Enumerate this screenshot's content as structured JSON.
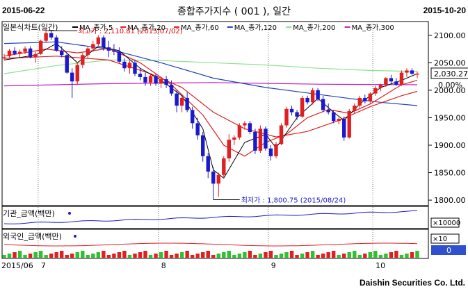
{
  "header": {
    "start_date": "2015-06-22",
    "title": "종합주가지수 ( 001 ), 일간",
    "end_date": "2015-10-20"
  },
  "footer": {
    "company": "Daishin Securities Co. Ltd."
  },
  "colors": {
    "up": "#e02020",
    "down": "#1a1acc",
    "ma5": "#000000",
    "ma20": "#e02020",
    "ma60": "#e02020",
    "ma120": "#2040c0",
    "ma200": "#90e090",
    "ma300": "#c020c0"
  },
  "chart_data": {
    "type": "candlestick",
    "panel_title": "일본식차트(일간)",
    "legend": [
      "MA_종가,5",
      "MA_종가,20",
      "MA_종가,60",
      "MA_종가,120",
      "MA_종가,200",
      "MA_종가,300"
    ],
    "y_ticks": [
      2100.0,
      2050.0,
      2000.0,
      1950.0,
      1900.0,
      1850.0,
      1800.0
    ],
    "ylim": [
      1790,
      2125
    ],
    "current_value": "2,030.27",
    "current_change": "0.00%",
    "high_label": "최고가 : 2,110.81 (2015/07/02)",
    "low_label": "최저가 : 1,800.75 (2015/08/24)",
    "x_labels": [
      "2015/06",
      "7",
      "8",
      "9",
      "10"
    ],
    "candles": [
      {
        "o": 2058,
        "h": 2066,
        "l": 2054,
        "c": 2060
      },
      {
        "o": 2062,
        "h": 2075,
        "l": 2058,
        "c": 2072
      },
      {
        "o": 2072,
        "h": 2078,
        "l": 2064,
        "c": 2066
      },
      {
        "o": 2066,
        "h": 2074,
        "l": 2060,
        "c": 2070
      },
      {
        "o": 2070,
        "h": 2080,
        "l": 2066,
        "c": 2076
      },
      {
        "o": 2076,
        "h": 2080,
        "l": 2058,
        "c": 2060
      },
      {
        "o": 2060,
        "h": 2070,
        "l": 2050,
        "c": 2066
      },
      {
        "o": 2066,
        "h": 2092,
        "l": 2064,
        "c": 2090
      },
      {
        "o": 2090,
        "h": 2110.81,
        "l": 2086,
        "c": 2104
      },
      {
        "o": 2104,
        "h": 2108,
        "l": 2092,
        "c": 2096
      },
      {
        "o": 2096,
        "h": 2100,
        "l": 2070,
        "c": 2072
      },
      {
        "o": 2072,
        "h": 2080,
        "l": 2060,
        "c": 2064
      },
      {
        "o": 2064,
        "h": 2068,
        "l": 2030,
        "c": 2032
      },
      {
        "o": 2032,
        "h": 2040,
        "l": 1986,
        "c": 2016
      },
      {
        "o": 2016,
        "h": 2050,
        "l": 2010,
        "c": 2046
      },
      {
        "o": 2046,
        "h": 2068,
        "l": 2040,
        "c": 2064
      },
      {
        "o": 2064,
        "h": 2080,
        "l": 2058,
        "c": 2076
      },
      {
        "o": 2076,
        "h": 2090,
        "l": 2070,
        "c": 2084
      },
      {
        "o": 2084,
        "h": 2100,
        "l": 2080,
        "c": 2096
      },
      {
        "o": 2096,
        "h": 2100,
        "l": 2072,
        "c": 2078
      },
      {
        "o": 2078,
        "h": 2090,
        "l": 2060,
        "c": 2072
      },
      {
        "o": 2072,
        "h": 2084,
        "l": 2064,
        "c": 2070
      },
      {
        "o": 2070,
        "h": 2078,
        "l": 2050,
        "c": 2052
      },
      {
        "o": 2052,
        "h": 2058,
        "l": 2034,
        "c": 2040
      },
      {
        "o": 2040,
        "h": 2054,
        "l": 2030,
        "c": 2050
      },
      {
        "o": 2050,
        "h": 2056,
        "l": 2026,
        "c": 2030
      },
      {
        "o": 2030,
        "h": 2040,
        "l": 2018,
        "c": 2024
      },
      {
        "o": 2024,
        "h": 2032,
        "l": 2008,
        "c": 2014
      },
      {
        "o": 2014,
        "h": 2030,
        "l": 2008,
        "c": 2026
      },
      {
        "o": 2026,
        "h": 2030,
        "l": 2008,
        "c": 2012
      },
      {
        "o": 2012,
        "h": 2024,
        "l": 2004,
        "c": 2020
      },
      {
        "o": 2020,
        "h": 2026,
        "l": 2004,
        "c": 2010
      },
      {
        "o": 2010,
        "h": 2018,
        "l": 1990,
        "c": 1994
      },
      {
        "o": 1994,
        "h": 2000,
        "l": 1960,
        "c": 1972
      },
      {
        "o": 1972,
        "h": 1990,
        "l": 1960,
        "c": 1986
      },
      {
        "o": 1986,
        "h": 1996,
        "l": 1960,
        "c": 1964
      },
      {
        "o": 1964,
        "h": 1970,
        "l": 1930,
        "c": 1940
      },
      {
        "o": 1940,
        "h": 1950,
        "l": 1910,
        "c": 1918
      },
      {
        "o": 1918,
        "h": 1924,
        "l": 1870,
        "c": 1880
      },
      {
        "o": 1880,
        "h": 1886,
        "l": 1840,
        "c": 1852
      },
      {
        "o": 1852,
        "h": 1860,
        "l": 1800.75,
        "c": 1830
      },
      {
        "o": 1830,
        "h": 1850,
        "l": 1806,
        "c": 1846
      },
      {
        "o": 1846,
        "h": 1880,
        "l": 1840,
        "c": 1876
      },
      {
        "o": 1876,
        "h": 1920,
        "l": 1870,
        "c": 1910
      },
      {
        "o": 1910,
        "h": 1918,
        "l": 1900,
        "c": 1914
      },
      {
        "o": 1914,
        "h": 1940,
        "l": 1910,
        "c": 1936
      },
      {
        "o": 1936,
        "h": 1944,
        "l": 1928,
        "c": 1940
      },
      {
        "o": 1940,
        "h": 1944,
        "l": 1920,
        "c": 1924
      },
      {
        "o": 1924,
        "h": 1930,
        "l": 1884,
        "c": 1890
      },
      {
        "o": 1890,
        "h": 1936,
        "l": 1886,
        "c": 1930
      },
      {
        "o": 1930,
        "h": 1934,
        "l": 1890,
        "c": 1894
      },
      {
        "o": 1894,
        "h": 1900,
        "l": 1872,
        "c": 1880
      },
      {
        "o": 1880,
        "h": 1906,
        "l": 1876,
        "c": 1902
      },
      {
        "o": 1902,
        "h": 1940,
        "l": 1900,
        "c": 1936
      },
      {
        "o": 1936,
        "h": 1970,
        "l": 1932,
        "c": 1966
      },
      {
        "o": 1966,
        "h": 1972,
        "l": 1954,
        "c": 1960
      },
      {
        "o": 1960,
        "h": 1964,
        "l": 1946,
        "c": 1952
      },
      {
        "o": 1952,
        "h": 1990,
        "l": 1950,
        "c": 1986
      },
      {
        "o": 1986,
        "h": 1990,
        "l": 1974,
        "c": 1978
      },
      {
        "o": 1978,
        "h": 2004,
        "l": 1974,
        "c": 2000
      },
      {
        "o": 2000,
        "h": 2004,
        "l": 1980,
        "c": 1984
      },
      {
        "o": 1984,
        "h": 1990,
        "l": 1960,
        "c": 1964
      },
      {
        "o": 1964,
        "h": 1976,
        "l": 1956,
        "c": 1960
      },
      {
        "o": 1960,
        "h": 1964,
        "l": 1940,
        "c": 1944
      },
      {
        "o": 1944,
        "h": 1950,
        "l": 1938,
        "c": 1948
      },
      {
        "o": 1948,
        "h": 1952,
        "l": 1908,
        "c": 1914
      },
      {
        "o": 1914,
        "h": 1966,
        "l": 1912,
        "c": 1962
      },
      {
        "o": 1962,
        "h": 1976,
        "l": 1958,
        "c": 1972
      },
      {
        "o": 1972,
        "h": 1990,
        "l": 1968,
        "c": 1986
      },
      {
        "o": 1986,
        "h": 1992,
        "l": 1976,
        "c": 1980
      },
      {
        "o": 1980,
        "h": 1996,
        "l": 1976,
        "c": 1994
      },
      {
        "o": 1994,
        "h": 2008,
        "l": 1990,
        "c": 2004
      },
      {
        "o": 2004,
        "h": 2012,
        "l": 1998,
        "c": 2010
      },
      {
        "o": 2010,
        "h": 2024,
        "l": 2006,
        "c": 2022
      },
      {
        "o": 2022,
        "h": 2028,
        "l": 2012,
        "c": 2016
      },
      {
        "o": 2016,
        "h": 2022,
        "l": 2008,
        "c": 2010
      },
      {
        "o": 2010,
        "h": 2036,
        "l": 2008,
        "c": 2032
      },
      {
        "o": 2032,
        "h": 2040,
        "l": 2024,
        "c": 2036
      },
      {
        "o": 2036,
        "h": 2040,
        "l": 2028,
        "c": 2030
      },
      {
        "o": 2030,
        "h": 2034,
        "l": 2022,
        "c": 2030.27
      }
    ],
    "ma": {
      "ma5": [
        [
          0,
          2055
        ],
        [
          6,
          2064
        ],
        [
          10,
          2085
        ],
        [
          14,
          2050
        ],
        [
          18,
          2080
        ],
        [
          22,
          2072
        ],
        [
          26,
          2040
        ],
        [
          30,
          2018
        ],
        [
          34,
          1990
        ],
        [
          38,
          1930
        ],
        [
          40,
          1855
        ],
        [
          42,
          1840
        ],
        [
          46,
          1905
        ],
        [
          50,
          1920
        ],
        [
          52,
          1895
        ],
        [
          56,
          1950
        ],
        [
          60,
          1985
        ],
        [
          63,
          1960
        ],
        [
          65,
          1945
        ],
        [
          68,
          1975
        ],
        [
          72,
          2005
        ],
        [
          76,
          2018
        ],
        [
          79,
          2030
        ]
      ],
      "ma20": [
        [
          0,
          2062
        ],
        [
          8,
          2075
        ],
        [
          14,
          2068
        ],
        [
          20,
          2076
        ],
        [
          26,
          2050
        ],
        [
          32,
          2010
        ],
        [
          38,
          1955
        ],
        [
          42,
          1900
        ],
        [
          46,
          1880
        ],
        [
          50,
          1905
        ],
        [
          54,
          1920
        ],
        [
          58,
          1950
        ],
        [
          62,
          1965
        ],
        [
          66,
          1958
        ],
        [
          70,
          1975
        ],
        [
          76,
          2010
        ],
        [
          79,
          2018
        ]
      ],
      "ma60": [
        [
          0,
          2058
        ],
        [
          10,
          2062
        ],
        [
          20,
          2055
        ],
        [
          28,
          2030
        ],
        [
          34,
          2005
        ],
        [
          40,
          1960
        ],
        [
          46,
          1930
        ],
        [
          52,
          1915
        ],
        [
          58,
          1925
        ],
        [
          64,
          1945
        ],
        [
          70,
          1970
        ],
        [
          76,
          1990
        ],
        [
          79,
          1998
        ]
      ],
      "ma120": [
        [
          0,
          2085
        ],
        [
          10,
          2088
        ],
        [
          20,
          2075
        ],
        [
          30,
          2050
        ],
        [
          40,
          2022
        ],
        [
          50,
          2005
        ],
        [
          58,
          1995
        ],
        [
          66,
          1985
        ],
        [
          72,
          1978
        ],
        [
          79,
          1972
        ]
      ],
      "ma200": [
        [
          0,
          2030
        ],
        [
          10,
          2045
        ],
        [
          20,
          2055
        ],
        [
          30,
          2054
        ],
        [
          40,
          2050
        ],
        [
          50,
          2046
        ],
        [
          60,
          2040
        ],
        [
          70,
          2036
        ],
        [
          79,
          2034
        ]
      ],
      "ma300": [
        [
          0,
          2008
        ],
        [
          20,
          2012
        ],
        [
          40,
          2014
        ],
        [
          60,
          2011
        ],
        [
          79,
          2010
        ]
      ]
    },
    "sub1": {
      "label": "기관_금액(백만)",
      "tag": "×10000"
    },
    "sub2": {
      "label": "외국인_금액(백만)",
      "tag": "×10",
      "value": "0"
    }
  }
}
